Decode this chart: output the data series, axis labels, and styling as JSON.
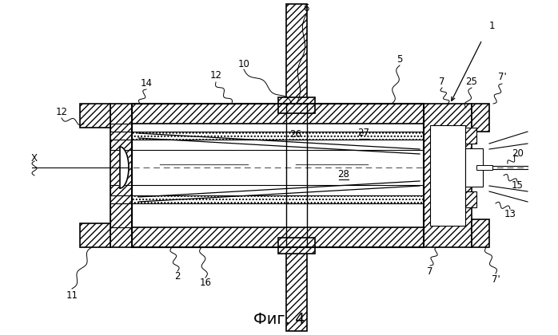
{
  "title": "Фиг. 4",
  "bg_color": "#ffffff",
  "lc": "#000000",
  "fig_width": 6.98,
  "fig_height": 4.2,
  "dpi": 100
}
